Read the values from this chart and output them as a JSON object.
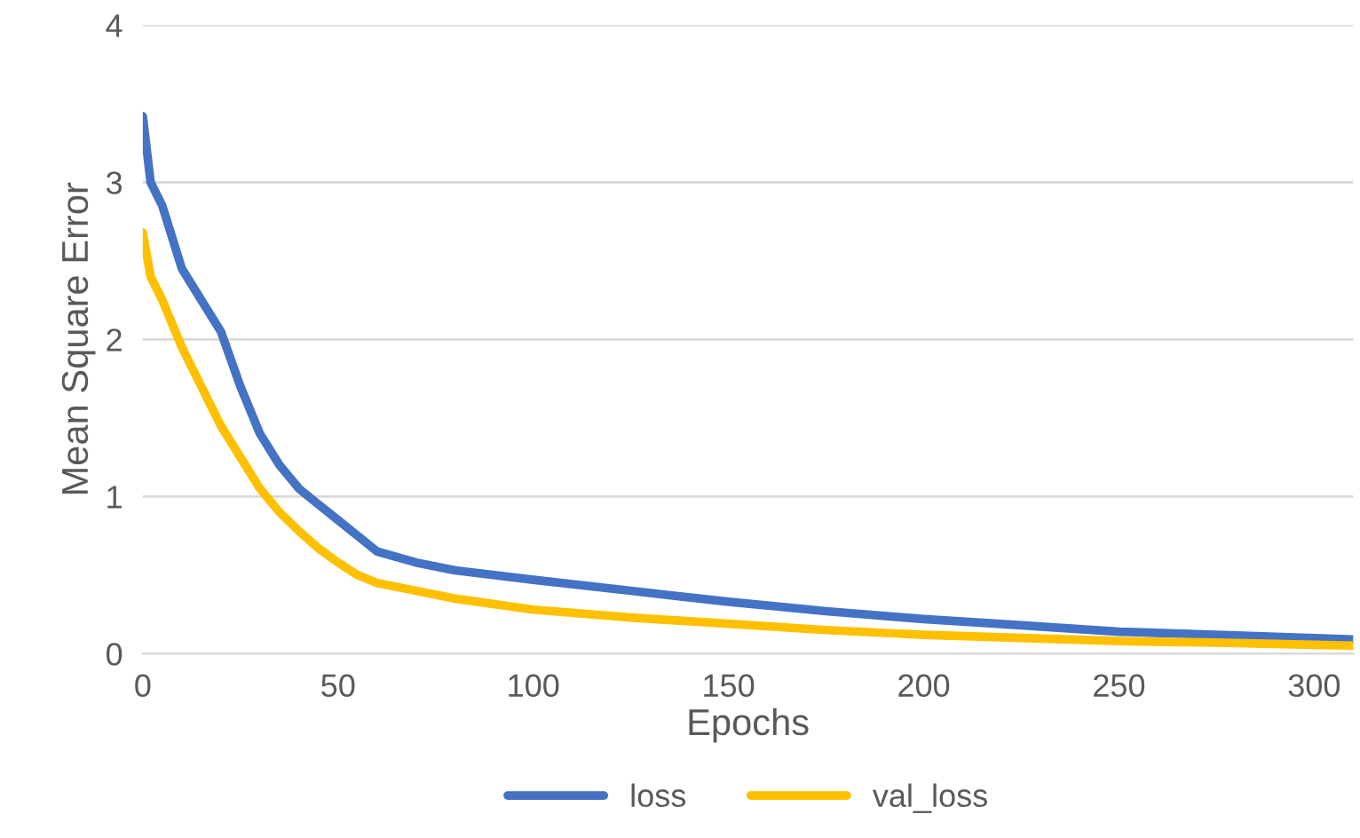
{
  "chart_data": {
    "type": "line",
    "xlabel": "Epochs",
    "ylabel": "Mean Square Error",
    "xlim": [
      0,
      310
    ],
    "xticks": [
      0,
      50,
      100,
      150,
      200,
      250,
      300
    ],
    "ylim": [
      0,
      4
    ],
    "yticks": [
      0,
      1,
      2,
      3,
      4
    ],
    "grid": "y",
    "legend": "bottom",
    "marker": "none",
    "line_style": "solid",
    "series": [
      {
        "name": "loss",
        "color": "#4472c4",
        "x": [
          0,
          2,
          5,
          10,
          15,
          20,
          25,
          30,
          35,
          40,
          45,
          50,
          55,
          60,
          70,
          80,
          100,
          125,
          150,
          175,
          200,
          225,
          250,
          275,
          310
        ],
        "values": [
          3.42,
          3.0,
          2.85,
          2.45,
          2.25,
          2.05,
          1.7,
          1.4,
          1.2,
          1.05,
          0.95,
          0.85,
          0.75,
          0.65,
          0.58,
          0.53,
          0.47,
          0.4,
          0.33,
          0.27,
          0.22,
          0.18,
          0.14,
          0.12,
          0.09
        ]
      },
      {
        "name": "val_loss",
        "color": "#ffc000",
        "x": [
          0,
          2,
          5,
          10,
          15,
          20,
          25,
          30,
          35,
          40,
          45,
          50,
          55,
          60,
          70,
          80,
          100,
          125,
          150,
          175,
          200,
          225,
          250,
          275,
          310
        ],
        "values": [
          2.68,
          2.4,
          2.25,
          1.95,
          1.7,
          1.45,
          1.25,
          1.05,
          0.9,
          0.78,
          0.67,
          0.58,
          0.5,
          0.45,
          0.4,
          0.35,
          0.28,
          0.23,
          0.19,
          0.15,
          0.12,
          0.1,
          0.08,
          0.07,
          0.05
        ]
      }
    ]
  }
}
